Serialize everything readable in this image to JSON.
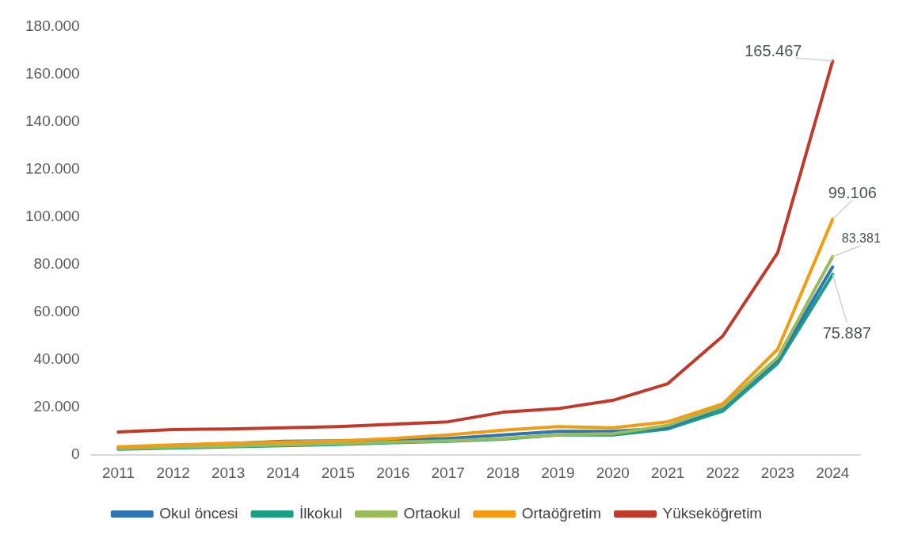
{
  "chart_data": {
    "type": "line",
    "categories": [
      "2011",
      "2012",
      "2013",
      "2014",
      "2015",
      "2016",
      "2017",
      "2018",
      "2019",
      "2020",
      "2021",
      "2022",
      "2023",
      "2024"
    ],
    "series": [
      {
        "name": "Okul öncesi",
        "color": "#2e75b6",
        "values": [
          3200,
          4000,
          4800,
          5800,
          6000,
          6300,
          7000,
          8500,
          10000,
          10000,
          11500,
          20000,
          40000,
          79000
        ]
      },
      {
        "name": "İlkokul",
        "color": "#17a085",
        "values": [
          2500,
          3000,
          3500,
          4000,
          4500,
          5200,
          5800,
          6700,
          8500,
          8500,
          11000,
          18500,
          38500,
          75887
        ],
        "value_labels": [
          null,
          null,
          null,
          null,
          null,
          null,
          null,
          null,
          null,
          null,
          null,
          null,
          null,
          "75.887"
        ]
      },
      {
        "name": "Ortaokul",
        "color": "#9bbb59",
        "values": [
          2800,
          3300,
          3800,
          4300,
          4800,
          5500,
          6000,
          7000,
          8500,
          9000,
          12500,
          20500,
          41000,
          83381
        ],
        "value_labels": [
          null,
          null,
          null,
          null,
          null,
          null,
          null,
          null,
          null,
          null,
          null,
          null,
          null,
          "83.381"
        ]
      },
      {
        "name": "Ortaöğretim",
        "color": "#f39c12",
        "values": [
          3500,
          4300,
          5000,
          5500,
          6000,
          7000,
          8500,
          10500,
          12000,
          11500,
          14000,
          21500,
          44500,
          99106
        ],
        "value_labels": [
          null,
          null,
          null,
          null,
          null,
          null,
          null,
          null,
          null,
          null,
          null,
          null,
          null,
          "99.106"
        ]
      },
      {
        "name": "Yükseköğretim",
        "color": "#c0392b",
        "values": [
          9700,
          10700,
          11000,
          11500,
          12000,
          13000,
          14000,
          18000,
          19500,
          23000,
          30000,
          50000,
          85000,
          165467
        ],
        "value_labels": [
          null,
          null,
          null,
          null,
          null,
          null,
          null,
          null,
          null,
          null,
          null,
          null,
          null,
          "165.467"
        ]
      }
    ],
    "ylim": [
      0,
      180000
    ],
    "yticks": [
      0,
      {
        "value": 20000,
        "label": "20.000"
      },
      {
        "value": 40000,
        "label": "40.000"
      },
      {
        "value": 60000,
        "label": "60.000"
      },
      {
        "value": 80000,
        "label": "80.000"
      },
      {
        "value": 100000,
        "label": "100.000"
      },
      {
        "value": 120000,
        "label": "120.000"
      },
      {
        "value": 140000,
        "label": "140.000"
      },
      {
        "value": 160000,
        "label": "160.000"
      },
      {
        "value": 180000,
        "label": "180.000"
      }
    ],
    "grid": false,
    "legend": "bottom",
    "marker": "none",
    "line_style": "solid"
  }
}
